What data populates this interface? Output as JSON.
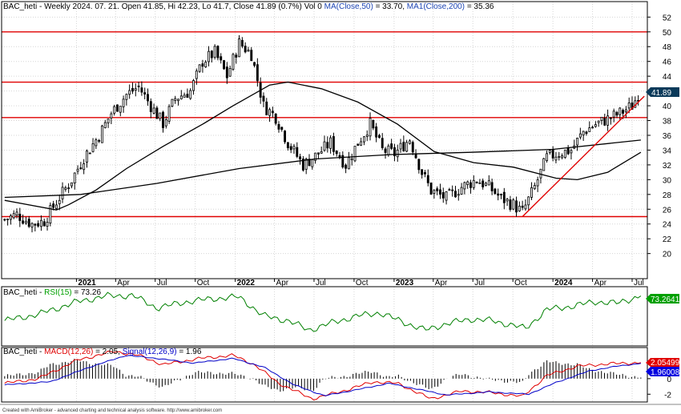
{
  "colors": {
    "background": "#ffffff",
    "frame": "#000000",
    "grid": "#d6d6d6",
    "candle": "#000000",
    "level_line": "#e00000",
    "trendline": "#e00000",
    "ma": "#000000",
    "rsi": "#008000",
    "macd": "#e00000",
    "signal": "#0000c8",
    "histogram": "#000000",
    "label_blue": "#1e46b4",
    "label_green": "#00a000",
    "price_tag": "#0a3a5a",
    "rsi_tag": "#00a000",
    "macd_tag": "#e00000",
    "signal_tag": "#0000e0"
  },
  "price_panel": {
    "header": {
      "ticker": "BAC_heti",
      "period": "Weekly 2024. 07. 21.",
      "ohlc": "Open 41.85, Hi 42.23, Lo 41.7, Close 41.89 (0.7%) Vol 0",
      "ma50_label": "MA(Close,50)",
      "ma50_value": "= 33.70,",
      "ma200_label": "MA1(Close,200)",
      "ma200_value": "= 35.36"
    },
    "last_price_tag": "41.89"
  },
  "rsi_panel": {
    "ticker": "BAC_heti",
    "label": "RSI(15)",
    "value": "= 73.26",
    "tag": "73.2641"
  },
  "macd_panel": {
    "ticker": "BAC_heti",
    "macd_label": "MACD(12,26)",
    "macd_value": "= 2.05,",
    "signal_label": "Signal(12,26,9)",
    "signal_value": "= 1.96",
    "macd_tag": "2.05499",
    "signal_tag": "1.96008"
  },
  "footer": "Created with AmiBroker - advanced charting and technical analysis software. http://www.amibroker.com",
  "chart_data": [
    {
      "type": "candlestick",
      "ylim": [
        18,
        53
      ],
      "ytick_labels": [
        "20",
        "22",
        "24",
        "26",
        "28",
        "30",
        "32",
        "34",
        "36",
        "38",
        "40",
        "42",
        "44",
        "46",
        "48",
        "50",
        "52"
      ],
      "xtick_labels": [
        "2021",
        "Apr",
        "Jul",
        "Oct",
        "2022",
        "Apr",
        "Jul",
        "Oct",
        "2023",
        "Apr",
        "Jul",
        "Oct",
        "2024",
        "Apr",
        "Jul"
      ],
      "horizontal_levels": [
        25,
        38.4,
        43.2,
        50
      ],
      "trendline": {
        "from": [
          "2023-10-23",
          25.0
        ],
        "to": [
          "2024-07-29",
          41.3
        ]
      },
      "price_anchors": [
        [
          "2020-07-20",
          24.6
        ],
        [
          "2020-08-17",
          25.3
        ],
        [
          "2020-09-21",
          24.0
        ],
        [
          "2020-10-19",
          24.4
        ],
        [
          "2020-11-16",
          27.0
        ],
        [
          "2020-12-21",
          30.0
        ],
        [
          "2021-01-18",
          33.0
        ],
        [
          "2021-02-22",
          36.0
        ],
        [
          "2021-03-22",
          39.0
        ],
        [
          "2021-04-26",
          41.5
        ],
        [
          "2021-05-24",
          42.6
        ],
        [
          "2021-06-21",
          40.0
        ],
        [
          "2021-07-19",
          37.6
        ],
        [
          "2021-08-16",
          41.0
        ],
        [
          "2021-09-20",
          42.0
        ],
        [
          "2021-10-18",
          46.0
        ],
        [
          "2021-11-15",
          47.2
        ],
        [
          "2021-12-13",
          44.0
        ],
        [
          "2022-01-10",
          48.5
        ],
        [
          "2022-02-07",
          47.0
        ],
        [
          "2022-03-07",
          40.0
        ],
        [
          "2022-04-04",
          38.5
        ],
        [
          "2022-05-02",
          35.0
        ],
        [
          "2022-06-06",
          32.0
        ],
        [
          "2022-07-04",
          33.2
        ],
        [
          "2022-08-08",
          35.0
        ],
        [
          "2022-09-12",
          32.0
        ],
        [
          "2022-10-10",
          35.0
        ],
        [
          "2022-11-07",
          37.5
        ],
        [
          "2022-12-05",
          34.0
        ],
        [
          "2023-01-02",
          33.5
        ],
        [
          "2023-02-06",
          35.5
        ],
        [
          "2023-03-06",
          31.0
        ],
        [
          "2023-03-27",
          28.5
        ],
        [
          "2023-05-01",
          27.5
        ],
        [
          "2023-06-05",
          29.0
        ],
        [
          "2023-07-10",
          30.0
        ],
        [
          "2023-08-07",
          29.0
        ],
        [
          "2023-09-04",
          27.5
        ],
        [
          "2023-10-02",
          26.6
        ],
        [
          "2023-10-23",
          25.6
        ],
        [
          "2023-11-20",
          29.0
        ],
        [
          "2023-12-18",
          33.0
        ],
        [
          "2024-01-15",
          33.6
        ],
        [
          "2024-02-12",
          34.0
        ],
        [
          "2024-03-11",
          36.5
        ],
        [
          "2024-04-08",
          37.5
        ],
        [
          "2024-05-06",
          38.2
        ],
        [
          "2024-06-03",
          39.0
        ],
        [
          "2024-07-01",
          40.0
        ],
        [
          "2024-07-15",
          41.5
        ],
        [
          "2024-07-21",
          41.89
        ]
      ],
      "ma50": [
        [
          "2020-07-20",
          27.2
        ],
        [
          "2020-11-16",
          25.9
        ],
        [
          "2020-12-14",
          26.6
        ],
        [
          "2021-02-15",
          28.6
        ],
        [
          "2021-04-26",
          31.5
        ],
        [
          "2021-07-19",
          34.5
        ],
        [
          "2021-10-18",
          37.5
        ],
        [
          "2021-12-27",
          40.0
        ],
        [
          "2022-03-21",
          42.8
        ],
        [
          "2022-05-02",
          43.2
        ],
        [
          "2022-07-18",
          42.3
        ],
        [
          "2022-10-10",
          40.5
        ],
        [
          "2023-01-09",
          37.5
        ],
        [
          "2023-04-03",
          33.8
        ],
        [
          "2023-07-03",
          32.3
        ],
        [
          "2023-10-02",
          31.7
        ],
        [
          "2024-01-08",
          30.2
        ],
        [
          "2024-02-26",
          30.0
        ],
        [
          "2024-05-06",
          31.0
        ],
        [
          "2024-07-21",
          33.7
        ]
      ],
      "ma200": [
        [
          "2020-07-20",
          27.6
        ],
        [
          "2021-01-11",
          28.0
        ],
        [
          "2021-07-05",
          29.5
        ],
        [
          "2022-01-10",
          31.5
        ],
        [
          "2022-07-04",
          32.8
        ],
        [
          "2022-12-26",
          33.4
        ],
        [
          "2023-06-26",
          33.7
        ],
        [
          "2024-01-01",
          34.1
        ],
        [
          "2024-07-21",
          35.36
        ]
      ]
    },
    {
      "type": "line",
      "name": "RSI(15)",
      "last_value": 73.26,
      "points": [
        [
          "2020-07-20",
          42
        ],
        [
          "2020-10-05",
          50
        ],
        [
          "2021-01-04",
          66
        ],
        [
          "2021-03-08",
          73
        ],
        [
          "2021-05-10",
          74
        ],
        [
          "2021-07-05",
          58
        ],
        [
          "2021-09-13",
          66
        ],
        [
          "2021-11-15",
          70
        ],
        [
          "2022-01-10",
          72
        ],
        [
          "2022-03-07",
          48
        ],
        [
          "2022-05-02",
          42
        ],
        [
          "2022-06-20",
          30
        ],
        [
          "2022-08-15",
          40
        ],
        [
          "2022-10-10",
          48
        ],
        [
          "2022-11-28",
          52
        ],
        [
          "2023-01-23",
          40
        ],
        [
          "2023-03-13",
          30
        ],
        [
          "2023-05-01",
          38
        ],
        [
          "2023-06-26",
          44
        ],
        [
          "2023-08-14",
          42
        ],
        [
          "2023-10-02",
          36
        ],
        [
          "2023-10-30",
          32
        ],
        [
          "2023-12-18",
          56
        ],
        [
          "2024-02-12",
          60
        ],
        [
          "2024-04-08",
          66
        ],
        [
          "2024-05-27",
          64
        ],
        [
          "2024-07-21",
          73.26
        ]
      ]
    },
    {
      "type": "line",
      "name": "MACD(12,26) / Signal(12,26,9)",
      "ylim": [
        -3,
        4
      ],
      "ytick_labels": [
        "-2",
        "0",
        "2"
      ],
      "macd": [
        [
          "2020-07-20",
          -0.6
        ],
        [
          "2020-10-05",
          0.0
        ],
        [
          "2021-01-04",
          2.4
        ],
        [
          "2021-03-29",
          3.5
        ],
        [
          "2021-05-24",
          3.0
        ],
        [
          "2021-07-19",
          1.8
        ],
        [
          "2021-10-11",
          2.6
        ],
        [
          "2021-12-27",
          3.0
        ],
        [
          "2022-02-14",
          1.8
        ],
        [
          "2022-04-11",
          -0.6
        ],
        [
          "2022-06-27",
          -2.6
        ],
        [
          "2022-09-05",
          -1.6
        ],
        [
          "2022-11-14",
          -0.4
        ],
        [
          "2023-01-09",
          -0.6
        ],
        [
          "2023-03-27",
          -2.6
        ],
        [
          "2023-06-05",
          -1.6
        ],
        [
          "2023-08-14",
          -1.8
        ],
        [
          "2023-10-23",
          -2.3
        ],
        [
          "2023-12-18",
          0.4
        ],
        [
          "2024-02-26",
          1.6
        ],
        [
          "2024-05-06",
          1.9
        ],
        [
          "2024-07-21",
          2.05
        ]
      ],
      "signal": [
        [
          "2020-07-20",
          -0.8
        ],
        [
          "2020-11-02",
          -0.4
        ],
        [
          "2021-02-01",
          1.5
        ],
        [
          "2021-04-26",
          3.0
        ],
        [
          "2021-07-05",
          2.6
        ],
        [
          "2021-09-27",
          2.0
        ],
        [
          "2021-12-27",
          2.6
        ],
        [
          "2022-03-07",
          1.5
        ],
        [
          "2022-05-16",
          -0.8
        ],
        [
          "2022-07-25",
          -2.2
        ],
        [
          "2022-10-10",
          -1.4
        ],
        [
          "2022-12-19",
          -0.6
        ],
        [
          "2023-02-20",
          -1.3
        ],
        [
          "2023-05-01",
          -2.1
        ],
        [
          "2023-08-07",
          -1.7
        ],
        [
          "2023-11-06",
          -2.0
        ],
        [
          "2024-01-08",
          -0.5
        ],
        [
          "2024-03-25",
          1.0
        ],
        [
          "2024-05-27",
          1.6
        ],
        [
          "2024-07-21",
          1.96
        ]
      ]
    }
  ]
}
